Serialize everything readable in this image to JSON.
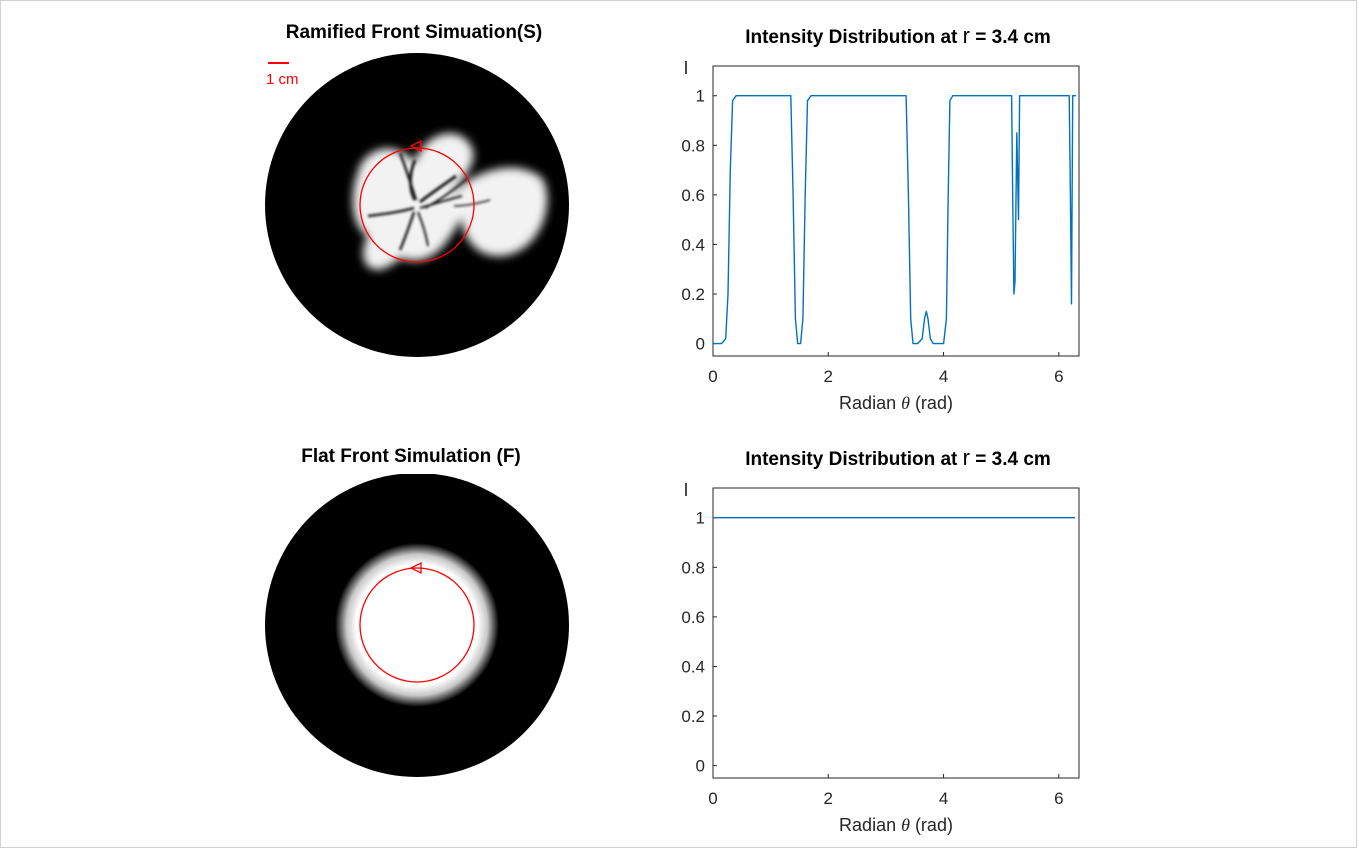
{
  "panels": {
    "top_left": {
      "title": "Ramified Front Simuation(S)",
      "scale_label": "1 cm"
    },
    "bottom_left": {
      "title": "Flat Front Simulation (F)"
    }
  },
  "colors": {
    "trace": "#0072BD",
    "overlay": "#ff0000",
    "background": "#000000",
    "front": "#ffffff"
  },
  "chart_data": [
    {
      "type": "line",
      "title_prefix": "Intensity Distribution at ",
      "title_var": "r",
      "title_suffix": " = 3.4 cm",
      "xlabel_prefix": "Radian ",
      "xlabel_var": "θ",
      "xlabel_suffix": " (rad)",
      "ylabel": "I",
      "xlim": [
        0,
        6.35
      ],
      "ylim": [
        -0.05,
        1.12
      ],
      "xticks": [
        0,
        2,
        4,
        6
      ],
      "yticks": [
        0,
        0.2,
        0.4,
        0.6,
        0.8,
        1
      ],
      "series": [
        {
          "x": [
            0,
            0.15,
            0.22,
            0.26,
            0.3,
            0.34,
            0.4,
            1.35,
            1.39,
            1.43,
            1.47,
            1.52,
            1.56,
            1.6,
            1.64,
            1.7,
            3.35,
            3.39,
            3.43,
            3.47,
            3.55,
            3.63,
            3.67,
            3.7,
            3.73,
            3.77,
            3.82,
            3.9,
            4.0,
            4.05,
            4.08,
            4.11,
            4.16,
            5.18,
            5.2,
            5.22,
            5.24,
            5.27,
            5.3,
            5.32,
            5.36,
            6.18,
            6.2,
            6.22,
            6.24,
            6.27,
            6.3
          ],
          "y": [
            0,
            0,
            0.02,
            0.2,
            0.7,
            0.98,
            1,
            1,
            0.6,
            0.1,
            0,
            0,
            0.1,
            0.6,
            0.98,
            1,
            1,
            0.6,
            0.1,
            0,
            0,
            0.02,
            0.1,
            0.13,
            0.1,
            0.02,
            0,
            0,
            0,
            0.1,
            0.6,
            0.98,
            1,
            1,
            0.6,
            0.2,
            0.25,
            0.85,
            0.5,
            1,
            1,
            1,
            0.6,
            0.16,
            1,
            1,
            1
          ]
        }
      ]
    },
    {
      "type": "line",
      "title_prefix": "Intensity Distribution at ",
      "title_var": "r",
      "title_suffix": " = 3.4 cm",
      "xlabel_prefix": "Radian ",
      "xlabel_var": "θ",
      "xlabel_suffix": " (rad)",
      "ylabel": "I",
      "xlim": [
        0,
        6.35
      ],
      "ylim": [
        -0.05,
        1.12
      ],
      "xticks": [
        0,
        2,
        4,
        6
      ],
      "yticks": [
        0,
        0.2,
        0.4,
        0.6,
        0.8,
        1
      ],
      "series": [
        {
          "x": [
            0,
            6.28
          ],
          "y": [
            1,
            1
          ]
        }
      ]
    }
  ]
}
